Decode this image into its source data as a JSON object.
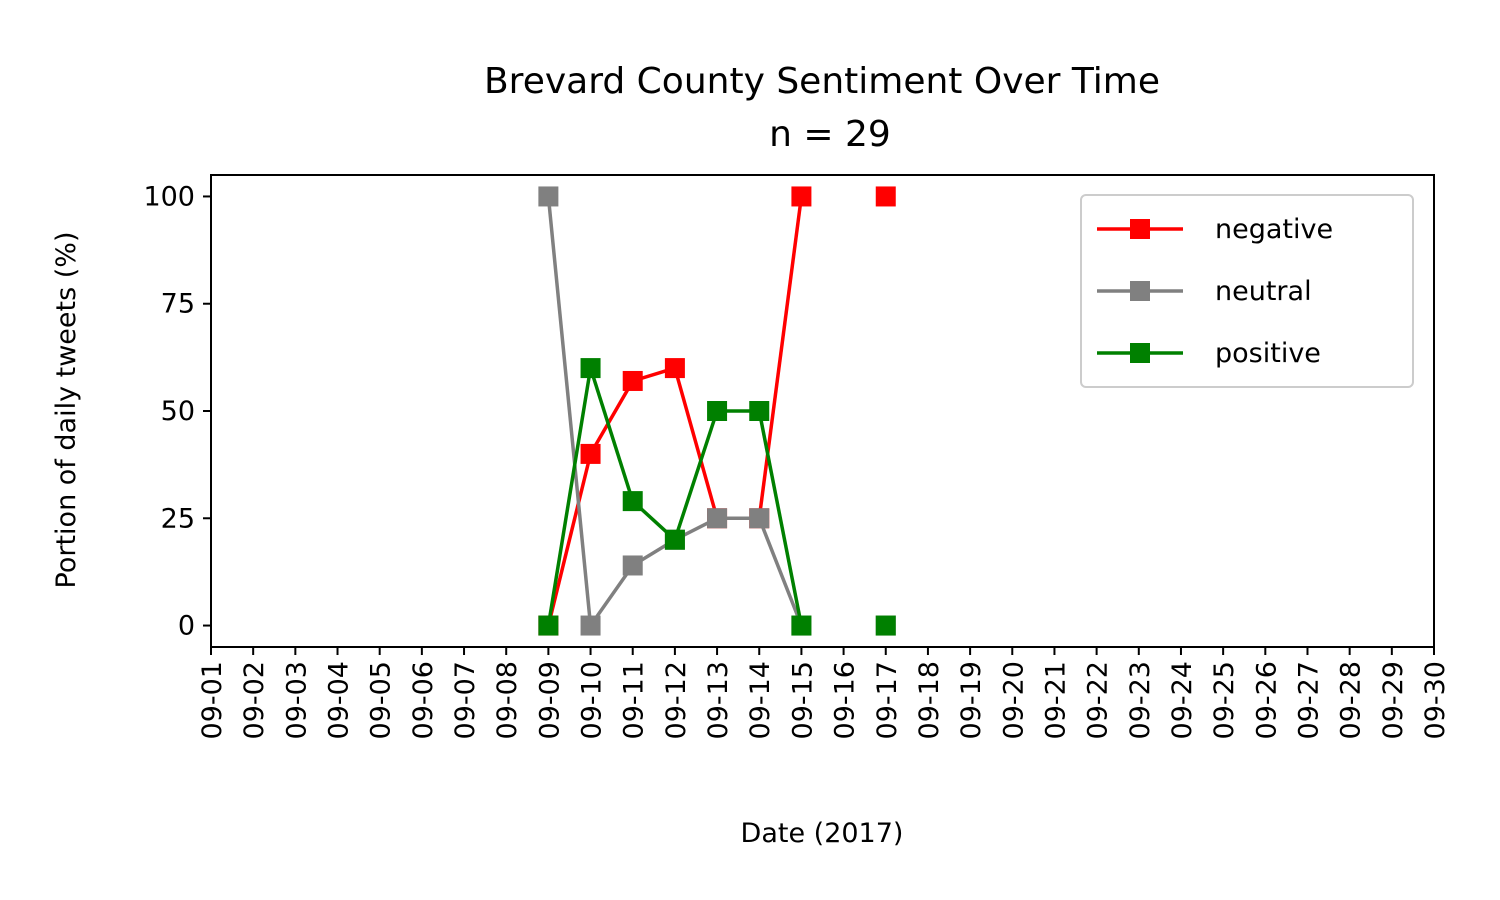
{
  "chart_data": {
    "type": "line",
    "title": "Brevard County Sentiment Over Time",
    "subtitle": "n = 29",
    "xlabel": "Date (2017)",
    "ylabel": "Portion of daily tweets (%)",
    "x": [
      "09-01",
      "09-02",
      "09-03",
      "09-04",
      "09-05",
      "09-06",
      "09-07",
      "09-08",
      "09-09",
      "09-10",
      "09-11",
      "09-12",
      "09-13",
      "09-14",
      "09-15",
      "09-16",
      "09-17",
      "09-18",
      "09-19",
      "09-20",
      "09-21",
      "09-22",
      "09-23",
      "09-24",
      "09-25",
      "09-26",
      "09-27",
      "09-28",
      "09-29",
      "09-30"
    ],
    "yticks": [
      0,
      25,
      50,
      75,
      100
    ],
    "ylim": [
      -5,
      105
    ],
    "grid": false,
    "legend_position": "upper right",
    "series": [
      {
        "name": "negative",
        "color": "#ff0000",
        "marker": "square",
        "values": [
          null,
          null,
          null,
          null,
          null,
          null,
          null,
          null,
          0,
          40,
          57,
          60,
          25,
          25,
          100,
          null,
          100,
          null,
          null,
          null,
          null,
          null,
          null,
          null,
          null,
          null,
          null,
          null,
          null,
          null
        ]
      },
      {
        "name": "neutral",
        "color": "#808080",
        "marker": "square",
        "values": [
          null,
          null,
          null,
          null,
          null,
          null,
          null,
          null,
          100,
          0,
          14,
          20,
          25,
          25,
          0,
          null,
          0,
          null,
          null,
          null,
          null,
          null,
          null,
          null,
          null,
          null,
          null,
          null,
          null,
          null
        ]
      },
      {
        "name": "positive",
        "color": "#008000",
        "marker": "square",
        "values": [
          null,
          null,
          null,
          null,
          null,
          null,
          null,
          null,
          0,
          60,
          29,
          20,
          50,
          50,
          0,
          null,
          0,
          null,
          null,
          null,
          null,
          null,
          null,
          null,
          null,
          null,
          null,
          null,
          null,
          null
        ]
      }
    ]
  }
}
